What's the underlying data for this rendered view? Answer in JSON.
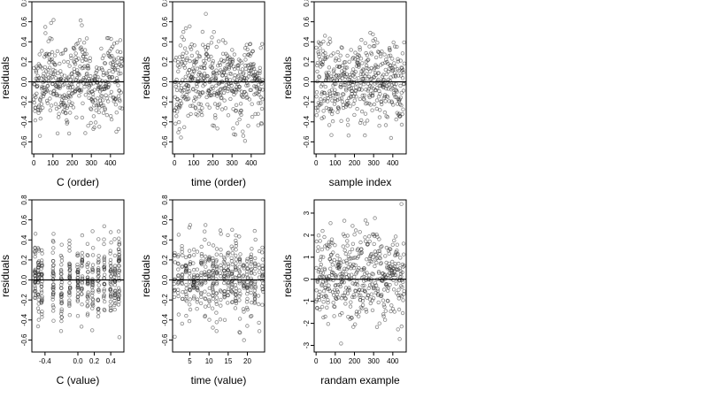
{
  "chart_data": [
    {
      "type": "scatter",
      "id": "c-order",
      "xlabel": "C (order)",
      "ylabel": "residuals",
      "xlim": [
        -10,
        470
      ],
      "ylim": [
        -0.72,
        0.8
      ],
      "xticks": [
        0,
        100,
        200,
        300,
        400
      ],
      "xtick_labels": [
        "0",
        "100",
        "200",
        "300",
        "400"
      ],
      "yticks": [
        -0.6,
        -0.4,
        -0.2,
        0.0,
        0.2,
        0.4,
        0.6,
        0.8
      ],
      "ytick_labels": [
        "-0.6",
        "-0.4",
        "-0.2",
        "0.0",
        "0.2",
        "0.4",
        "0.6",
        "0.8"
      ],
      "hline": 0,
      "gen": {
        "n": 460,
        "seed": 11,
        "xmode": "index",
        "xmin": 0,
        "xmax": 460,
        "sd": 0.2,
        "smooth": 0.12,
        "period": 160
      }
    },
    {
      "type": "scatter",
      "id": "time-order",
      "xlabel": "time (order)",
      "ylabel": "residuals",
      "xlim": [
        -10,
        470
      ],
      "ylim": [
        -0.72,
        0.8
      ],
      "xticks": [
        0,
        100,
        200,
        300,
        400
      ],
      "xtick_labels": [
        "0",
        "100",
        "200",
        "300",
        "400"
      ],
      "yticks": [
        -0.6,
        -0.4,
        -0.2,
        0.0,
        0.2,
        0.4,
        0.6,
        0.8
      ],
      "ytick_labels": [
        "-0.6",
        "-0.4",
        "-0.2",
        "0.0",
        "0.2",
        "0.4",
        "0.6",
        "0.8"
      ],
      "hline": 0,
      "gen": {
        "n": 460,
        "seed": 23,
        "xmode": "index",
        "xmin": 0,
        "xmax": 460,
        "sd": 0.2,
        "smooth": 0.08,
        "period": 110
      }
    },
    {
      "type": "scatter",
      "id": "sample-index",
      "xlabel": "sample index",
      "ylabel": "residuals",
      "xlim": [
        -10,
        470
      ],
      "ylim": [
        -0.72,
        0.8
      ],
      "xticks": [
        0,
        100,
        200,
        300,
        400
      ],
      "xtick_labels": [
        "0",
        "100",
        "200",
        "300",
        "400"
      ],
      "yticks": [
        -0.6,
        -0.4,
        -0.2,
        0.0,
        0.2,
        0.4,
        0.6,
        0.8
      ],
      "ytick_labels": [
        "-0.6",
        "-0.4",
        "-0.2",
        "0.0",
        "0.2",
        "0.4",
        "0.6",
        "0.8"
      ],
      "hline": 0,
      "gen": {
        "n": 460,
        "seed": 37,
        "xmode": "index",
        "xmin": 0,
        "xmax": 460,
        "sd": 0.2,
        "smooth": 0.06,
        "period": 90
      }
    },
    {
      "type": "scatter",
      "id": "c-value",
      "xlabel": "C (value)",
      "ylabel": "residuals",
      "xlim": [
        -0.56,
        0.56
      ],
      "ylim": [
        -0.72,
        0.8
      ],
      "xticks": [
        -0.4,
        0.0,
        0.2,
        0.4
      ],
      "xtick_labels": [
        "-0.4",
        "0.0",
        "0.2",
        "0.4"
      ],
      "yticks": [
        -0.6,
        -0.4,
        -0.2,
        0.0,
        0.2,
        0.4,
        0.6,
        0.8
      ],
      "ytick_labels": [
        "-0.6",
        "-0.4",
        "-0.2",
        "0.0",
        "0.2",
        "0.4",
        "0.6",
        "0.8"
      ],
      "hline": 0,
      "gen": {
        "n": 460,
        "seed": 41,
        "xmode": "columns",
        "columns": [
          -0.52,
          -0.48,
          -0.44,
          -0.3,
          -0.2,
          -0.1,
          0.0,
          0.05,
          0.12,
          0.18,
          0.25,
          0.32,
          0.4,
          0.45,
          0.5
        ],
        "jitter": 0.006,
        "sd": 0.2
      }
    },
    {
      "type": "scatter",
      "id": "time-value",
      "xlabel": "time (value)",
      "ylabel": "residuals",
      "xlim": [
        0.5,
        24.5
      ],
      "ylim": [
        -0.72,
        0.8
      ],
      "xticks": [
        5,
        10,
        15,
        20
      ],
      "xtick_labels": [
        "5",
        "10",
        "15",
        "20"
      ],
      "yticks": [
        -0.6,
        -0.4,
        -0.2,
        0.0,
        0.2,
        0.4,
        0.6,
        0.8
      ],
      "ytick_labels": [
        "-0.6",
        "-0.4",
        "-0.2",
        "0.0",
        "0.2",
        "0.4",
        "0.6",
        "0.8"
      ],
      "hline": 0,
      "gen": {
        "n": 460,
        "seed": 53,
        "xmode": "columns",
        "columns": [
          1,
          2,
          3,
          4,
          5,
          6,
          7,
          8,
          9,
          10,
          11,
          12,
          13,
          14,
          15,
          16,
          17,
          18,
          19,
          20,
          21,
          22,
          23,
          24
        ],
        "jitter": 0.15,
        "sd": 0.2
      }
    },
    {
      "type": "scatter",
      "id": "random-example",
      "xlabel": "randam example",
      "ylabel": "residuals",
      "xlim": [
        -10,
        470
      ],
      "ylim": [
        -3.3,
        3.6
      ],
      "xticks": [
        0,
        100,
        200,
        300,
        400
      ],
      "xtick_labels": [
        "0",
        "100",
        "200",
        "300",
        "400"
      ],
      "yticks": [
        -3,
        -2,
        -1,
        0,
        1,
        2,
        3
      ],
      "ytick_labels": [
        "-3",
        "-2",
        "-1",
        "0",
        "1",
        "2",
        "3"
      ],
      "hline": 0,
      "gen": {
        "n": 460,
        "seed": 67,
        "xmode": "index",
        "xmin": 0,
        "xmax": 460,
        "sd": 1.0,
        "smooth": 0.0,
        "period": 100
      }
    }
  ]
}
